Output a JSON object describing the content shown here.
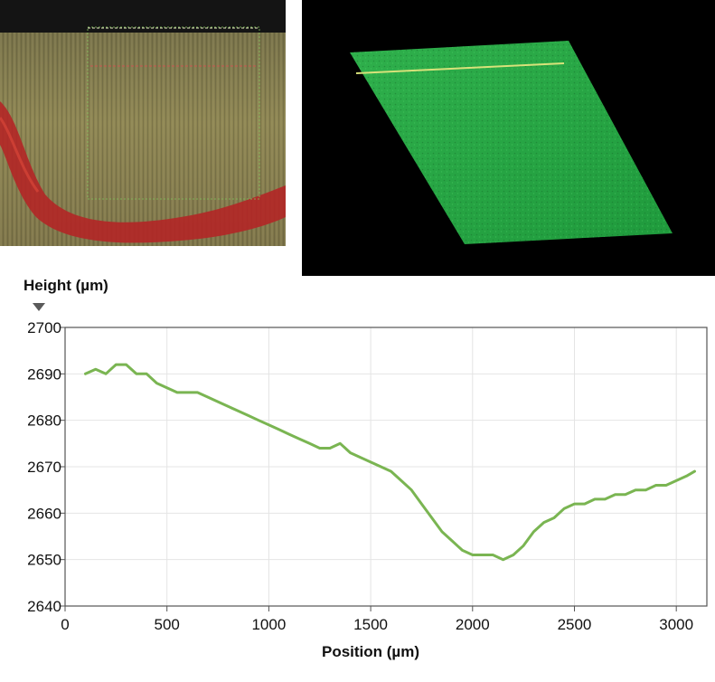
{
  "colors": {
    "line": "#7ab552",
    "axis": "#555555",
    "text": "#111111",
    "marker": "#5a5a5a",
    "scan_surface": "#2aa645",
    "scan_scanline": "#d8e27a",
    "micro_bg": "#8a8150",
    "micro_band": "#c02a2a"
  },
  "chart_data": {
    "type": "line",
    "title": "",
    "ylabel": "Height (µm)",
    "xlabel": "Position (µm)",
    "xlim": [
      0,
      3150
    ],
    "ylim": [
      2640,
      2700
    ],
    "x_ticks": [
      0,
      500,
      1000,
      1500,
      2000,
      2500,
      3000
    ],
    "y_ticks": [
      2640,
      2650,
      2660,
      2670,
      2680,
      2690,
      2700
    ],
    "grid": true,
    "series": [
      {
        "x": [
          100,
          150,
          200,
          250,
          300,
          350,
          400,
          450,
          500,
          550,
          600,
          650,
          700,
          750,
          800,
          850,
          900,
          950,
          1000,
          1050,
          1100,
          1150,
          1200,
          1250,
          1300,
          1350,
          1400,
          1450,
          1500,
          1550,
          1600,
          1650,
          1700,
          1750,
          1800,
          1850,
          1900,
          1950,
          2000,
          2050,
          2100,
          2150,
          2200,
          2250,
          2300,
          2350,
          2400,
          2450,
          2500,
          2550,
          2600,
          2650,
          2700,
          2750,
          2800,
          2850,
          2900,
          2950,
          3000,
          3050,
          3090
        ],
        "y": [
          2690,
          2691,
          2690,
          2692,
          2692,
          2690,
          2690,
          2688,
          2687,
          2686,
          2686,
          2686,
          2685,
          2684,
          2683,
          2682,
          2681,
          2680,
          2679,
          2678,
          2677,
          2676,
          2675,
          2674,
          2674,
          2675,
          2673,
          2672,
          2671,
          2670,
          2669,
          2667,
          2665,
          2662,
          2659,
          2656,
          2654,
          2652,
          2651,
          2651,
          2651,
          2650,
          2651,
          2653,
          2656,
          2658,
          2659,
          2661,
          2662,
          2662,
          2663,
          2663,
          2664,
          2664,
          2665,
          2665,
          2666,
          2666,
          2667,
          2668,
          2669
        ]
      }
    ]
  }
}
